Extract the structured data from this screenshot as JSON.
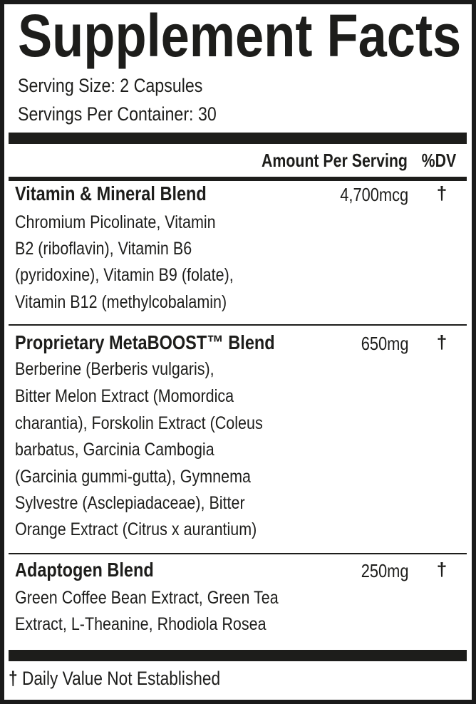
{
  "title": "Supplement Facts",
  "serving_size": "Serving Size: 2 Capsules",
  "servings_per_container": "Servings Per Container: 30",
  "header": {
    "amount": "Amount Per Serving",
    "dv": "%DV"
  },
  "dagger_icon": "dagger",
  "sections": [
    {
      "name": "Vitamin & Mineral Blend",
      "amount": "4,700mcg",
      "dv": "†",
      "lines": [
        "Chromium Picolinate, Vitamin",
        "B2 (riboflavin), Vitamin B6",
        "(pyridoxine), Vitamin B9 (folate),",
        "Vitamin B12 (methylcobalamin)"
      ]
    },
    {
      "name": "Proprietary MetaBOOST™ Blend",
      "amount": "650mg",
      "dv": "†",
      "lines": [
        "Berberine (Berberis vulgaris),",
        "Bitter Melon Extract (Momordica",
        "charantia), Forskolin Extract (Coleus",
        "barbatus, Garcinia Cambogia",
        "(Garcinia gummi-gutta), Gymnema",
        "Sylvestre (Asclepiadaceae), Bitter",
        "Orange Extract (Citrus x aurantium)"
      ]
    },
    {
      "name": "Adaptogen Blend",
      "amount": "250mg",
      "dv": "†",
      "lines": [
        "Green Coffee Bean Extract, Green Tea",
        "Extract, L-Theanine, Rhodiola Rosea"
      ]
    }
  ],
  "footnote": {
    "symbol": "†",
    "text": "Daily Value Not Established"
  }
}
